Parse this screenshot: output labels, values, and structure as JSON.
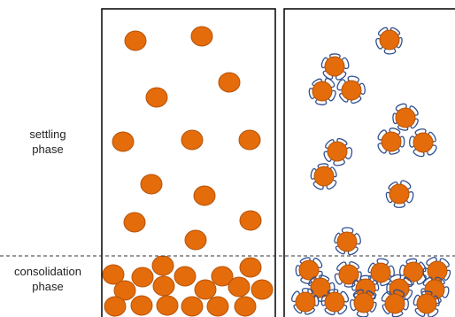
{
  "labels": {
    "settling_line1": "settling",
    "settling_line2": "phase",
    "consolidation_line1": "consolidation",
    "consolidation_line2": "phase"
  },
  "colors": {
    "particle_fill": "#E46C0A",
    "particle_stroke": "#B5530A",
    "polymer_stroke": "#2F4E8F",
    "frame": "#000000",
    "divider": "#333333"
  },
  "panels": [
    {
      "name": "bare-particles",
      "particle_type": "plain"
    },
    {
      "name": "coated-particles",
      "particle_type": "polymer-coated"
    }
  ]
}
